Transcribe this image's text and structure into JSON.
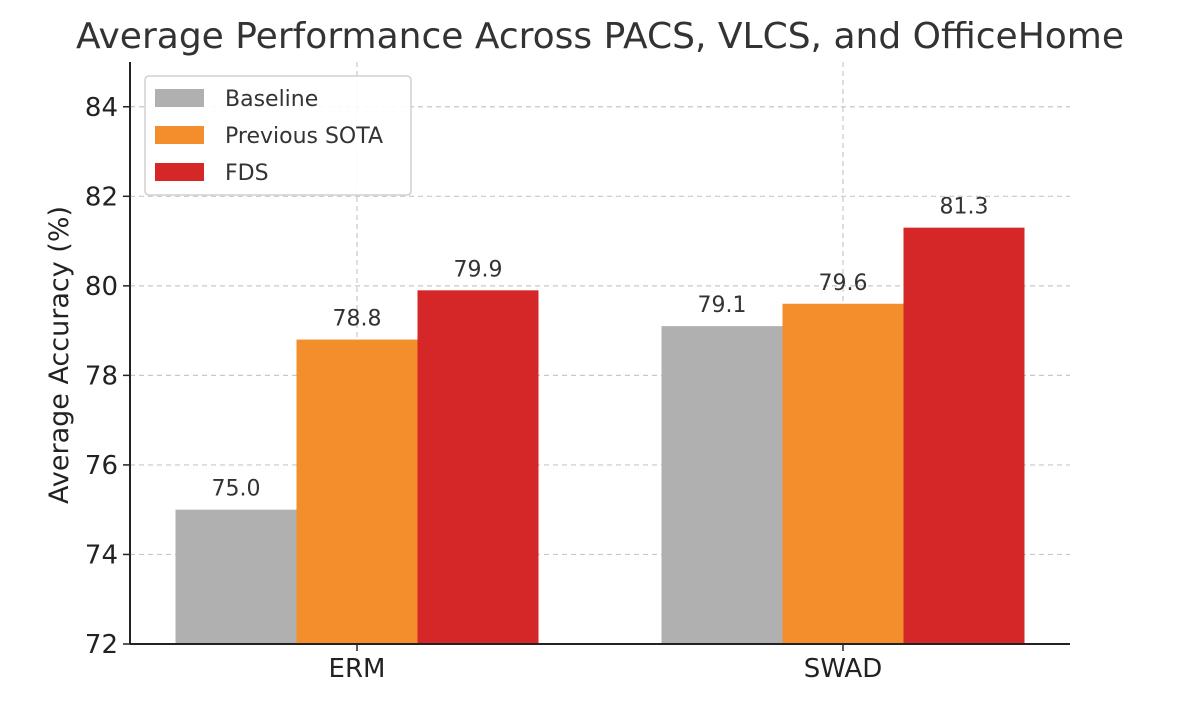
{
  "chart_data": {
    "type": "bar",
    "title": "Average Performance Across PACS, VLCS, and OfficeHome",
    "xlabel": "",
    "ylabel": "Average Accuracy (%)",
    "categories": [
      "ERM",
      "SWAD"
    ],
    "series": [
      {
        "name": "Baseline",
        "color": "#b0b0b0",
        "values": [
          75.0,
          79.1
        ],
        "labels": [
          "75.0",
          "79.1"
        ]
      },
      {
        "name": "Previous SOTA",
        "color": "#f28e2b",
        "values": [
          78.8,
          79.6
        ],
        "labels": [
          "78.8",
          "79.6"
        ]
      },
      {
        "name": "FDS",
        "color": "#d62728",
        "values": [
          79.9,
          81.3
        ],
        "labels": [
          "79.9",
          "81.3"
        ]
      }
    ],
    "ylim": [
      72,
      85
    ],
    "yticks": [
      72,
      74,
      76,
      78,
      80,
      82,
      84
    ],
    "grid": true,
    "legend_position": "top-left"
  }
}
